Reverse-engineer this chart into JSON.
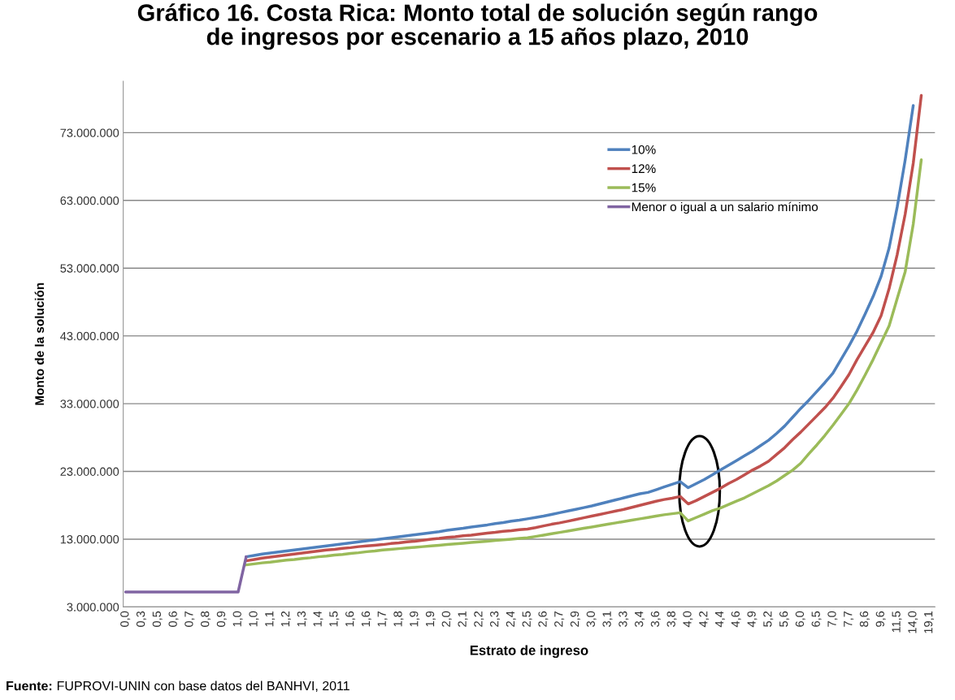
{
  "chart_data": {
    "type": "line",
    "title": "Gráfico 16. Costa Rica: Monto total de solución según rango\nde ingresos por escenario a 15 años plazo, 2010",
    "xlabel": "Estrato de ingreso",
    "ylabel": "Monto de la solución",
    "categories": [
      "0,0",
      null,
      "0,3",
      null,
      "0,5",
      null,
      "0,6",
      null,
      "0,7",
      null,
      "0,8",
      null,
      "0,9",
      null,
      "1,0",
      null,
      "1,0",
      null,
      "1,1",
      null,
      "1,2",
      null,
      "1,3",
      null,
      "1,4",
      null,
      "1,5",
      null,
      "1,6",
      null,
      "1,6",
      null,
      "1,7",
      null,
      "1,8",
      null,
      "1,9",
      null,
      "1,9",
      null,
      "2,0",
      null,
      "2,1",
      null,
      "2,2",
      null,
      "2,3",
      null,
      "2,4",
      null,
      "2,5",
      null,
      "2,6",
      null,
      "2,7",
      null,
      "2,9",
      null,
      "3,0",
      null,
      "3,1",
      null,
      "3,3",
      null,
      "3,4",
      null,
      "3,6",
      null,
      "3,8",
      null,
      "4,0",
      null,
      "4,2",
      null,
      "4,4",
      null,
      "4,6",
      null,
      "4,9",
      null,
      "5,2",
      null,
      "5,6",
      null,
      "6,0",
      null,
      "6,5",
      null,
      "7,0",
      null,
      "7,7",
      null,
      "8,6",
      null,
      "9,6",
      null,
      "11,5",
      null,
      "14,0",
      null,
      "19,1"
    ],
    "series": [
      {
        "name": "10%",
        "color": "#4f81bd",
        "values": [
          null,
          null,
          null,
          null,
          null,
          null,
          null,
          null,
          null,
          null,
          null,
          null,
          null,
          null,
          null,
          10400000,
          10600000,
          10800000,
          10950000,
          11100000,
          11250000,
          11400000,
          11550000,
          11700000,
          11850000,
          12000000,
          12150000,
          12300000,
          12450000,
          12600000,
          12750000,
          12900000,
          13050000,
          13200000,
          13350000,
          13500000,
          13650000,
          13800000,
          13950000,
          14100000,
          14300000,
          14450000,
          14600000,
          14800000,
          14950000,
          15100000,
          15300000,
          15450000,
          15650000,
          15800000,
          16000000,
          16200000,
          16400000,
          16650000,
          16900000,
          17150000,
          17400000,
          17650000,
          17900000,
          18200000,
          18500000,
          18800000,
          19100000,
          19400000,
          19700000,
          19900000,
          20300000,
          20700000,
          21100000,
          21500000,
          20600000,
          21200000,
          21800000,
          22500000,
          23200000,
          23900000,
          24600000,
          25300000,
          26000000,
          26800000,
          27600000,
          28600000,
          29700000,
          31000000,
          32300000,
          33500000,
          34800000,
          36100000,
          37500000,
          39500000,
          41500000,
          43700000,
          46200000,
          48800000,
          51800000,
          56000000,
          62000000,
          69000000,
          77000000,
          null,
          null
        ]
      },
      {
        "name": "12%",
        "color": "#c0504d",
        "values": [
          null,
          null,
          null,
          null,
          null,
          null,
          null,
          null,
          null,
          null,
          null,
          null,
          null,
          null,
          null,
          9800000,
          10000000,
          10200000,
          10350000,
          10500000,
          10650000,
          10800000,
          10950000,
          11100000,
          11250000,
          11400000,
          11500000,
          11650000,
          11750000,
          11900000,
          12000000,
          12100000,
          12200000,
          12350000,
          12450000,
          12600000,
          12700000,
          12850000,
          13000000,
          13100000,
          13250000,
          13350000,
          13500000,
          13600000,
          13750000,
          13900000,
          14000000,
          14150000,
          14250000,
          14400000,
          14500000,
          14700000,
          14950000,
          15200000,
          15400000,
          15650000,
          15900000,
          16150000,
          16400000,
          16650000,
          16900000,
          17150000,
          17400000,
          17700000,
          18000000,
          18300000,
          18600000,
          18850000,
          19050000,
          19300000,
          18200000,
          18700000,
          19300000,
          19900000,
          20500000,
          21200000,
          21800000,
          22500000,
          23200000,
          23800000,
          24500000,
          25500000,
          26500000,
          27700000,
          28800000,
          30000000,
          31200000,
          32400000,
          33800000,
          35500000,
          37300000,
          39500000,
          41500000,
          43500000,
          46000000,
          50000000,
          55000000,
          61000000,
          68500000,
          78500000,
          null
        ]
      },
      {
        "name": "15%",
        "color": "#9bbb59",
        "values": [
          null,
          null,
          null,
          null,
          null,
          null,
          null,
          null,
          null,
          null,
          null,
          null,
          null,
          null,
          null,
          9200000,
          9350000,
          9500000,
          9600000,
          9750000,
          9900000,
          10000000,
          10150000,
          10250000,
          10400000,
          10500000,
          10650000,
          10750000,
          10900000,
          11000000,
          11150000,
          11250000,
          11400000,
          11500000,
          11600000,
          11700000,
          11800000,
          11900000,
          12000000,
          12100000,
          12200000,
          12300000,
          12400000,
          12500000,
          12600000,
          12700000,
          12800000,
          12900000,
          13000000,
          13100000,
          13200000,
          13400000,
          13600000,
          13800000,
          14000000,
          14200000,
          14400000,
          14600000,
          14800000,
          15000000,
          15200000,
          15400000,
          15600000,
          15800000,
          16000000,
          16200000,
          16400000,
          16600000,
          16750000,
          16900000,
          15700000,
          16200000,
          16700000,
          17200000,
          17600000,
          18100000,
          18600000,
          19100000,
          19700000,
          20300000,
          20900000,
          21600000,
          22400000,
          23200000,
          24200000,
          25600000,
          26900000,
          28300000,
          29800000,
          31400000,
          33000000,
          35000000,
          37200000,
          39500000,
          42000000,
          44500000,
          48500000,
          52500000,
          59500000,
          69000000,
          null
        ]
      },
      {
        "name": "Menor o igual a un salario mínimo",
        "color": "#8064a2",
        "values": [
          5200000,
          5200000,
          5200000,
          5200000,
          5200000,
          5200000,
          5200000,
          5200000,
          5200000,
          5200000,
          5200000,
          5200000,
          5200000,
          5200000,
          5200000,
          10400000,
          null,
          null,
          null,
          null,
          null,
          null,
          null,
          null,
          null,
          null,
          null,
          null,
          null,
          null,
          null,
          null,
          null,
          null,
          null,
          null,
          null,
          null,
          null,
          null,
          null,
          null,
          null,
          null,
          null,
          null,
          null,
          null,
          null,
          null,
          null,
          null,
          null,
          null,
          null,
          null,
          null,
          null,
          null,
          null,
          null,
          null,
          null,
          null,
          null,
          null,
          null,
          null,
          null,
          null,
          null,
          null,
          null,
          null,
          null,
          null,
          null,
          null,
          null,
          null,
          null,
          null,
          null,
          null,
          null,
          null,
          null,
          null,
          null,
          null,
          null,
          null,
          null,
          null,
          null,
          null,
          null,
          null,
          null,
          null,
          null
        ]
      }
    ],
    "ylim": [
      3000000,
      80600000
    ],
    "yticks": [
      {
        "value": 3000000,
        "label": "3.000.000"
      },
      {
        "value": 13000000,
        "label": "13.000.000"
      },
      {
        "value": 23000000,
        "label": "23.000.000"
      },
      {
        "value": 33000000,
        "label": "33.000.000"
      },
      {
        "value": 43000000,
        "label": "43.000.000"
      },
      {
        "value": 53000000,
        "label": "53.000.000"
      },
      {
        "value": 63000000,
        "label": "63.000.000"
      },
      {
        "value": 73000000,
        "label": "73.000.000"
      }
    ],
    "grid": "y",
    "legend": "top right",
    "marker": "none",
    "line_style": "solid",
    "annotations": [
      "Fuente: FUPROVI-UNIN con base datos del BANHVI, 2011"
    ]
  }
}
